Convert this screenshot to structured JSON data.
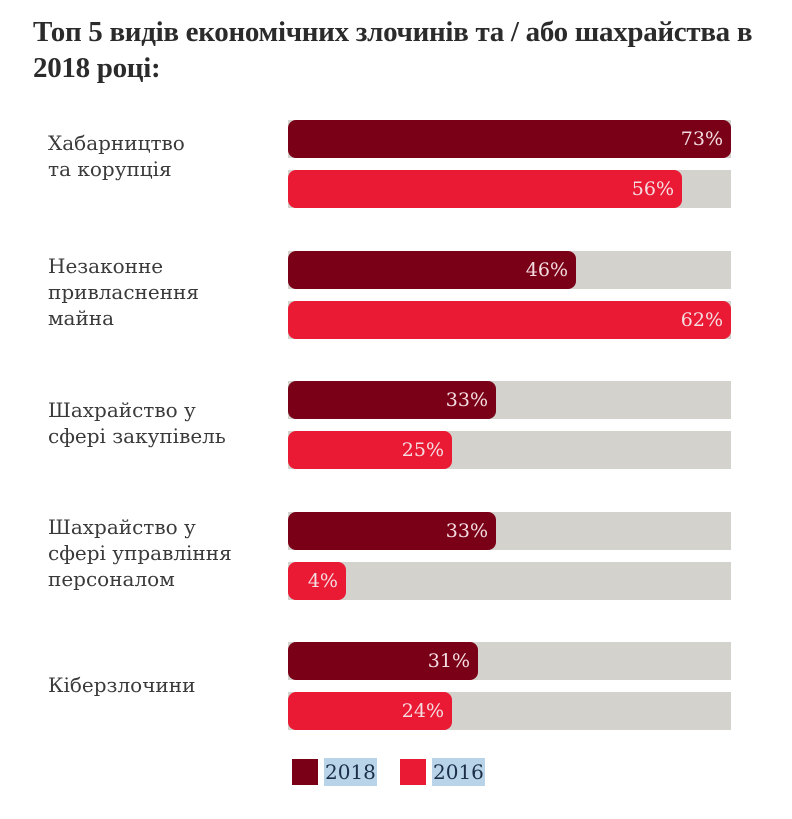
{
  "chart_data": {
    "type": "bar",
    "orientation": "horizontal",
    "title": "Топ 5 видів економічних злочинів та / або шахрайства в 2018 році:",
    "categories": [
      "Хабарництво\nта корупція",
      "Незаконне\nпривласнення\nмайна",
      "Шахрайство у\nсфері закупівель",
      "Шахрайство у\nсфері управління\nперсоналом",
      "Кіберзлочини"
    ],
    "series": [
      {
        "name": "2018",
        "color": "#7a0018",
        "values": [
          73,
          46,
          33,
          33,
          31
        ],
        "labels": [
          "73%",
          "46%",
          "33%",
          "33%",
          "31%"
        ],
        "fill": [
          1.0,
          0.65,
          0.47,
          0.47,
          0.43
        ]
      },
      {
        "name": "2016",
        "color": "#ea1a35",
        "values": [
          56,
          62,
          25,
          4,
          24
        ],
        "labels": [
          "56%",
          "62%",
          "25%",
          "4%",
          "24%"
        ],
        "fill": [
          0.89,
          1.0,
          0.37,
          0.13,
          0.37
        ]
      }
    ],
    "track_color": "#d4d2cc",
    "xlabel": "",
    "ylabel": "",
    "grid": false,
    "legend": {
      "placement": "bottom",
      "entries": [
        "2018",
        "2016"
      ]
    }
  }
}
